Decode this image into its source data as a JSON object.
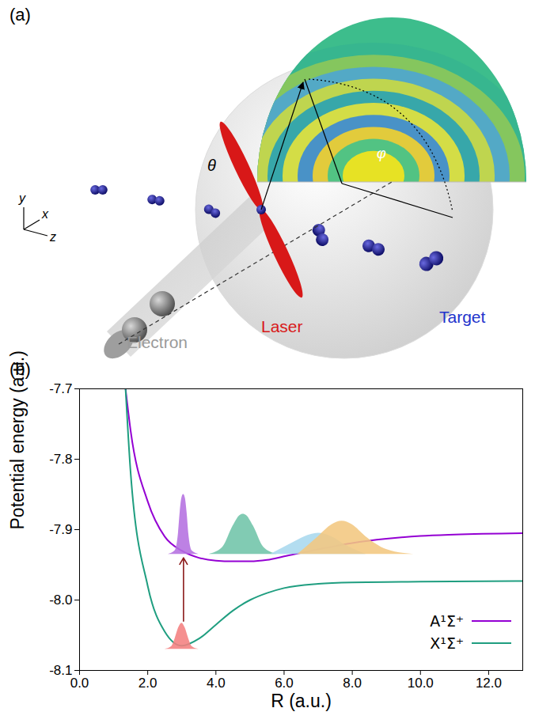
{
  "figure_a": {
    "panel_label": "(a)",
    "axes": {
      "x": "x",
      "y": "y",
      "z": "z"
    },
    "angles": {
      "polar": "θ",
      "azimuthal": "φ"
    },
    "labels": {
      "electron": "Electron",
      "laser": "Laser",
      "target": "Target"
    }
  },
  "chart_data": {
    "type": "line",
    "panel_label": "(b)",
    "x_label": "R (a.u.)",
    "y_label": "Potential energy (a.u.)",
    "xlim": [
      0,
      13
    ],
    "xticks": [
      {
        "value": 0,
        "label": "0.0"
      },
      {
        "value": 2,
        "label": "2.0"
      },
      {
        "value": 4,
        "label": "4.0"
      },
      {
        "value": 6,
        "label": "6.0"
      },
      {
        "value": 8,
        "label": "8.0"
      },
      {
        "value": 10,
        "label": "10.0"
      },
      {
        "value": 12,
        "label": "12.0"
      }
    ],
    "ylim": [
      -8.1,
      -7.7
    ],
    "yticks": [
      -8.1,
      {
        "value": -8,
        "label": "-8.0"
      },
      -7.9,
      -7.8,
      -7.7
    ],
    "legend": "bottom-right",
    "series": [
      {
        "name": "A¹Σ⁺",
        "color": "#9400d3",
        "x": [
          1.35,
          1.5,
          2.0,
          2.5,
          3.0,
          3.5,
          4.0,
          4.5,
          5.0,
          5.5,
          6.0,
          7.0,
          8.0,
          9.0,
          10.0,
          11.0,
          13.0
        ],
        "values": [
          -7.7,
          -7.76,
          -7.86,
          -7.91,
          -7.93,
          -7.94,
          -7.944,
          -7.945,
          -7.945,
          -7.943,
          -7.938,
          -7.928,
          -7.919,
          -7.913,
          -7.909,
          -7.907,
          -7.905
        ]
      },
      {
        "name": "X¹Σ⁺",
        "color": "#1f9e80",
        "x": [
          1.35,
          1.5,
          2.0,
          2.5,
          3.0,
          3.5,
          4.0,
          4.5,
          5.0,
          5.5,
          6.0,
          7.0,
          8.0,
          10.0,
          13.0
        ],
        "values": [
          -7.7,
          -7.82,
          -7.98,
          -8.045,
          -8.065,
          -8.055,
          -8.035,
          -8.015,
          -8.0,
          -7.99,
          -7.983,
          -7.977,
          -7.975,
          -7.974,
          -7.973
        ]
      }
    ],
    "wavepackets": [
      {
        "color": "#f47f7f",
        "baseline": -8.07,
        "x": [
          2.5,
          2.7,
          2.8,
          2.9,
          3.0,
          3.1,
          3.2,
          3.3,
          3.5
        ],
        "values": [
          -8.07,
          -8.066,
          -8.055,
          -8.04,
          -8.033,
          -8.04,
          -8.055,
          -8.066,
          -8.07
        ]
      },
      {
        "color": "#b46fe0",
        "baseline": -7.935,
        "x": [
          2.6,
          2.8,
          2.9,
          2.95,
          3.0,
          3.05,
          3.1,
          3.15,
          3.2,
          3.3,
          3.5
        ],
        "values": [
          -7.935,
          -7.93,
          -7.905,
          -7.875,
          -7.855,
          -7.85,
          -7.855,
          -7.875,
          -7.905,
          -7.93,
          -7.935
        ]
      },
      {
        "color": "#6fc4a8",
        "baseline": -7.935,
        "x": [
          3.8,
          4.2,
          4.5,
          4.7,
          4.8,
          4.9,
          5.1,
          5.4,
          5.8
        ],
        "values": [
          -7.935,
          -7.925,
          -7.895,
          -7.88,
          -7.878,
          -7.88,
          -7.895,
          -7.925,
          -7.935
        ]
      },
      {
        "color": "#a9d8ee",
        "baseline": -7.935,
        "x": [
          5.6,
          6.2,
          6.6,
          7.0,
          7.4,
          7.8,
          8.4
        ],
        "values": [
          -7.935,
          -7.92,
          -7.91,
          -7.905,
          -7.91,
          -7.922,
          -7.935
        ]
      },
      {
        "color": "#f2c77f",
        "baseline": -7.935,
        "x": [
          6.4,
          7.0,
          7.4,
          7.7,
          8.0,
          8.4,
          9.0,
          9.8
        ],
        "values": [
          -7.935,
          -7.91,
          -7.893,
          -7.888,
          -7.893,
          -7.91,
          -7.928,
          -7.935
        ]
      }
    ],
    "arrow": {
      "x": 3.05,
      "from": -8.03,
      "to": -7.94,
      "color": "#8b1a1a"
    }
  }
}
